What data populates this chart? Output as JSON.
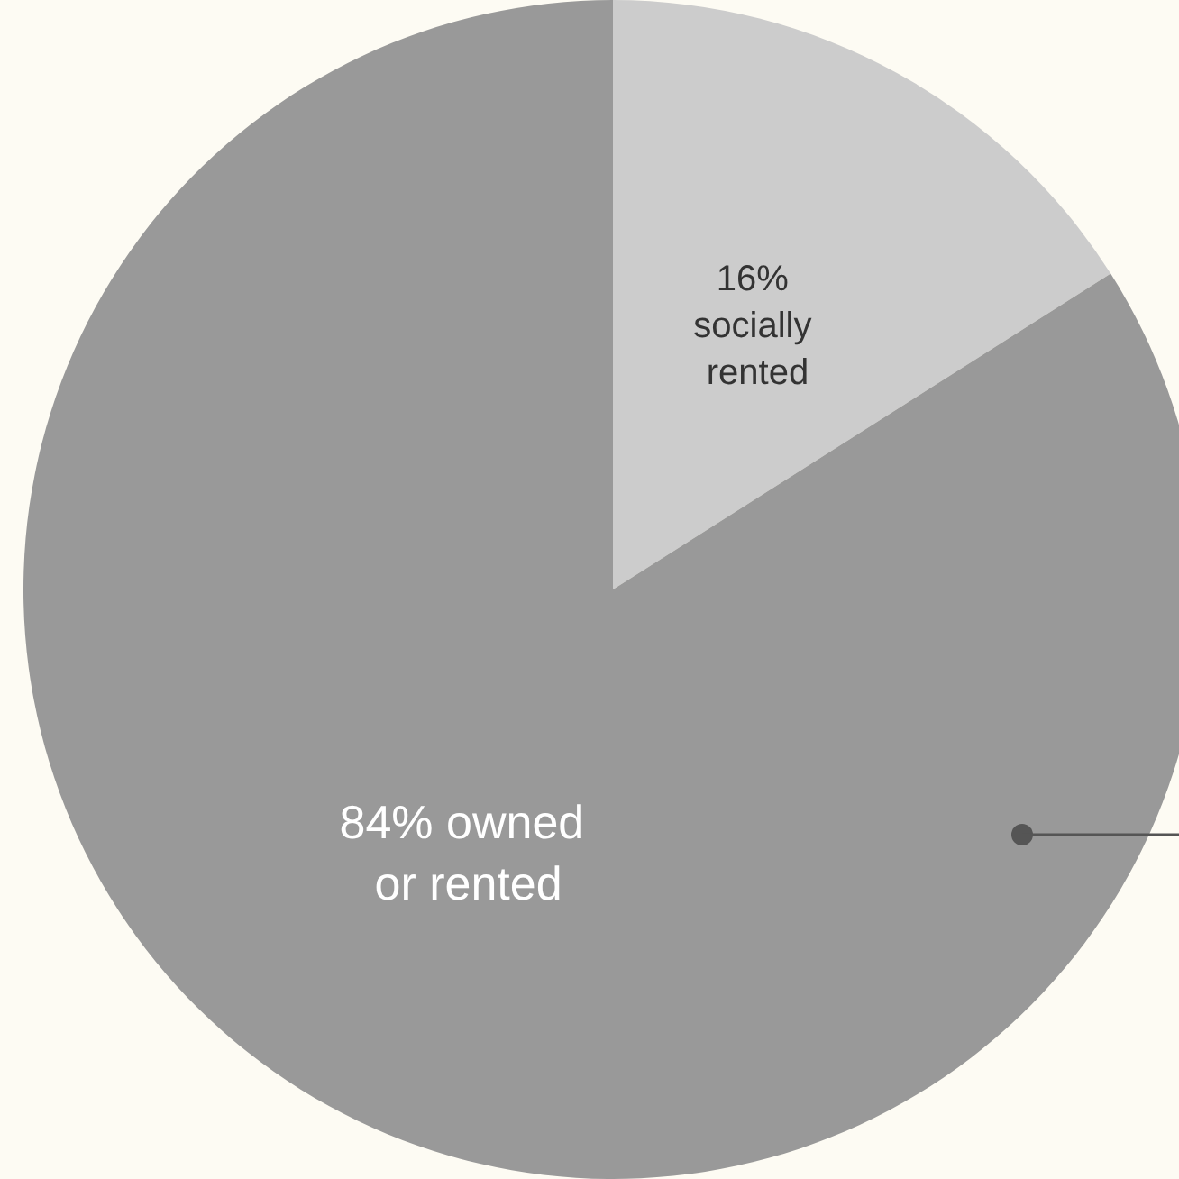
{
  "chart_data": {
    "type": "pie",
    "categories": [
      "socially rented",
      "owned or rented"
    ],
    "values": [
      16,
      84
    ],
    "colors": [
      "#cccccc",
      "#999999"
    ],
    "value_labels": [
      "16%",
      "84%"
    ]
  }
}
